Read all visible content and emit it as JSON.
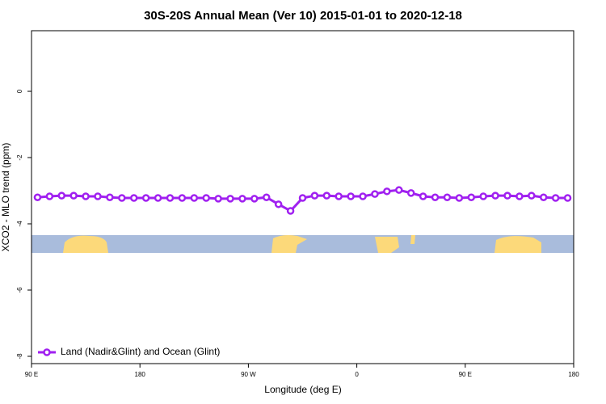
{
  "chart_data": {
    "type": "line",
    "title": "30S-20S Annual Mean (Ver 10)   2015-01-01 to 2020-12-18",
    "x_label": "Longitude (deg E)",
    "y_label": "XCO2 - MLO trend (ppm)",
    "x": [
      95,
      105,
      115,
      125,
      135,
      145,
      155,
      165,
      175,
      185,
      195,
      205,
      215,
      225,
      235,
      245,
      255,
      265,
      275,
      285,
      295,
      305,
      315,
      325,
      335,
      345,
      355,
      365,
      375,
      385,
      395,
      405,
      415,
      425,
      435,
      445,
      455,
      465,
      475,
      485,
      495,
      505,
      515,
      525,
      535
    ],
    "series": [
      {
        "name": "Land (Nadir&Glint) and Ocean (Glint)",
        "color": "#a020f0",
        "values": [
          -3.2,
          -3.17,
          -3.15,
          -3.15,
          -3.17,
          -3.17,
          -3.2,
          -3.22,
          -3.22,
          -3.22,
          -3.22,
          -3.22,
          -3.22,
          -3.22,
          -3.22,
          -3.24,
          -3.24,
          -3.24,
          -3.24,
          -3.2,
          -3.41,
          -3.61,
          -3.22,
          -3.15,
          -3.15,
          -3.17,
          -3.17,
          -3.17,
          -3.1,
          -3.02,
          -2.98,
          -3.07,
          -3.17,
          -3.2,
          -3.2,
          -3.22,
          -3.2,
          -3.17,
          -3.15,
          -3.15,
          -3.17,
          -3.15,
          -3.2,
          -3.22,
          -3.22
        ]
      }
    ],
    "xlim": [
      90,
      540
    ],
    "ylim": [
      -8.22,
      1.83
    ],
    "xticks": [
      {
        "value": 90,
        "label": "90 E"
      },
      180,
      {
        "value": 270,
        "label": "90 W"
      },
      {
        "value": 360,
        "label": "0"
      },
      {
        "value": 450,
        "label": "90 E"
      },
      {
        "value": 540,
        "label": "180"
      }
    ],
    "yticks": [
      0,
      -2,
      -4,
      -6,
      -8
    ],
    "legend": "bottom-left"
  }
}
